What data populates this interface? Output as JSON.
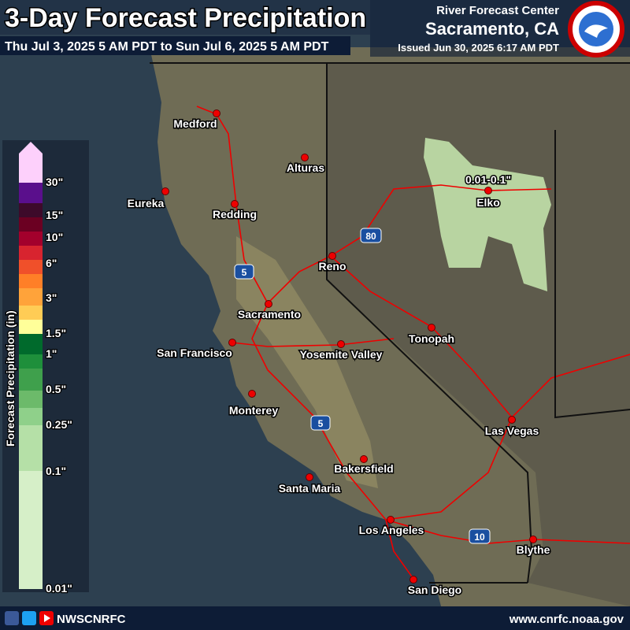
{
  "header": {
    "title": "3-Day Forecast Precipitation",
    "period": "Thu Jul 3, 2025 5 AM PDT to Sun Jul 6, 2025 5 AM PDT",
    "office": "River Forecast Center",
    "location": "Sacramento, CA",
    "issued": "Issued Jun 30, 2025 6:17 AM PDT"
  },
  "legend": {
    "title": "Forecast Precipitation (in)",
    "colors": [
      "#fdd0fb",
      "#5a0f8c",
      "#3d0a2a",
      "#6b0022",
      "#a3002c",
      "#d8242f",
      "#f0502a",
      "#ff7f27",
      "#ffa33a",
      "#ffcc55",
      "#ffff99",
      "#006a2c",
      "#1e8f3b",
      "#3fa04c",
      "#6cba6a",
      "#8fd08a",
      "#b5e0a7",
      "#d6efc8"
    ],
    "labels": [
      "30\"",
      "15\"",
      "10\"",
      "6\"",
      "3\"",
      "1.5\"",
      "1\"",
      "0.5\"",
      "0.25\"",
      "0.1\"",
      "0.01\""
    ]
  },
  "map": {
    "cities": [
      "Medford",
      "Alturas",
      "Eureka",
      "Redding",
      "Elko",
      "Reno",
      "Sacramento",
      "San Francisco",
      "Yosemite Valley",
      "Tonopah",
      "Monterey",
      "Las Vegas",
      "Bakersfield",
      "Santa Maria",
      "Los Angeles",
      "Blythe",
      "San Diego"
    ],
    "highways": [
      "80",
      "5",
      "5",
      "10"
    ],
    "annotation": "0.01-0.1\"",
    "precip_color": "#c8eab0"
  },
  "footer": {
    "handle": "NWSCNRFC",
    "url": "www.cnrfc.noaa.gov"
  }
}
